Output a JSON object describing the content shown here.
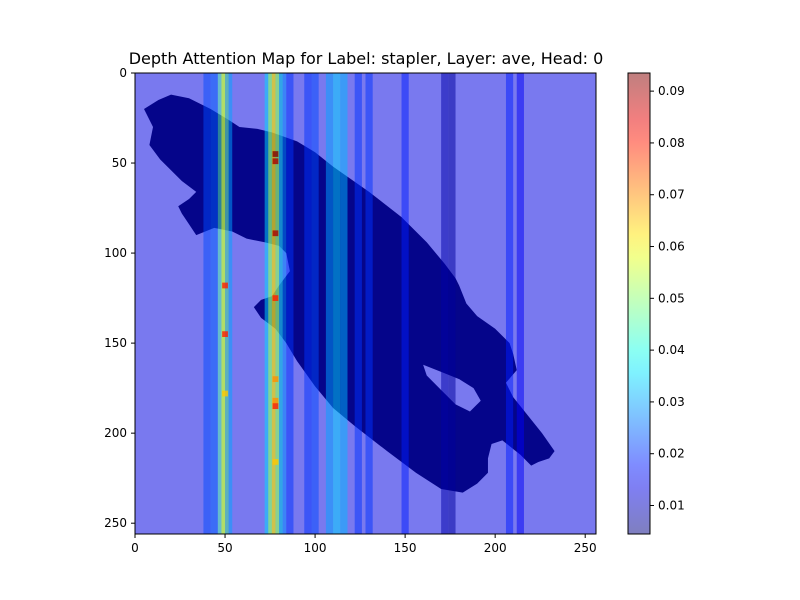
{
  "chart_data": [
    {
      "type": "heatmap",
      "title": "Depth Attention Map for Label: stapler, Layer: ave, Head: 0",
      "xlabel": "",
      "ylabel": "",
      "xlim": [
        0,
        256
      ],
      "ylim": [
        256,
        0
      ],
      "xticks": [
        "0",
        "50",
        "100",
        "150",
        "200",
        "250"
      ],
      "yticks": [
        "0",
        "50",
        "100",
        "150",
        "200",
        "250"
      ],
      "grid": false,
      "colormap": "jet",
      "overlay_alpha": 0.5,
      "base_image": "dark navy stapler silhouette on light background",
      "colorbar": {
        "min": 0.0045,
        "max": 0.0935,
        "ticks": [
          "0.01",
          "0.02",
          "0.03",
          "0.04",
          "0.05",
          "0.06",
          "0.07",
          "0.08",
          "0.09"
        ]
      },
      "attention_columns": [
        {
          "x": 40,
          "value": 0.022
        },
        {
          "x": 44,
          "value": 0.024
        },
        {
          "x": 48,
          "value": 0.045
        },
        {
          "x": 50,
          "value": 0.06
        },
        {
          "x": 52,
          "value": 0.03
        },
        {
          "x": 74,
          "value": 0.035
        },
        {
          "x": 76,
          "value": 0.055
        },
        {
          "x": 78,
          "value": 0.065
        },
        {
          "x": 80,
          "value": 0.045
        },
        {
          "x": 82,
          "value": 0.028
        },
        {
          "x": 86,
          "value": 0.02
        },
        {
          "x": 96,
          "value": 0.02
        },
        {
          "x": 100,
          "value": 0.022
        },
        {
          "x": 108,
          "value": 0.03
        },
        {
          "x": 112,
          "value": 0.035
        },
        {
          "x": 116,
          "value": 0.032
        },
        {
          "x": 124,
          "value": 0.02
        },
        {
          "x": 130,
          "value": 0.02
        },
        {
          "x": 150,
          "value": 0.018
        },
        {
          "x": 172,
          "value": 0.008
        },
        {
          "x": 176,
          "value": 0.007
        },
        {
          "x": 208,
          "value": 0.018
        },
        {
          "x": 214,
          "value": 0.015
        }
      ],
      "hotspots": [
        {
          "x": 78,
          "y": 45,
          "value": 0.093
        },
        {
          "x": 78,
          "y": 49,
          "value": 0.09
        },
        {
          "x": 78,
          "y": 89,
          "value": 0.09
        },
        {
          "x": 50,
          "y": 118,
          "value": 0.08
        },
        {
          "x": 78,
          "y": 125,
          "value": 0.08
        },
        {
          "x": 50,
          "y": 145,
          "value": 0.08
        },
        {
          "x": 78,
          "y": 170,
          "value": 0.07
        },
        {
          "x": 78,
          "y": 182,
          "value": 0.07
        },
        {
          "x": 78,
          "y": 185,
          "value": 0.08
        },
        {
          "x": 50,
          "y": 178,
          "value": 0.065
        },
        {
          "x": 78,
          "y": 216,
          "value": 0.065
        }
      ],
      "object_outline": [
        [
          5,
          20
        ],
        [
          13,
          15
        ],
        [
          20,
          12
        ],
        [
          30,
          14
        ],
        [
          42,
          20
        ],
        [
          52,
          26
        ],
        [
          58,
          30
        ],
        [
          68,
          31
        ],
        [
          76,
          33
        ],
        [
          90,
          38
        ],
        [
          100,
          44
        ],
        [
          110,
          52
        ],
        [
          130,
          66
        ],
        [
          148,
          80
        ],
        [
          162,
          94
        ],
        [
          172,
          106
        ],
        [
          178,
          114
        ],
        [
          180,
          118
        ],
        [
          184,
          128
        ],
        [
          190,
          135
        ],
        [
          200,
          142
        ],
        [
          208,
          150
        ],
        [
          210,
          156
        ],
        [
          212,
          165
        ],
        [
          206,
          172
        ],
        [
          210,
          180
        ],
        [
          218,
          190
        ],
        [
          226,
          200
        ],
        [
          233,
          210
        ],
        [
          230,
          214
        ],
        [
          224,
          216
        ],
        [
          220,
          218
        ],
        [
          214,
          212
        ],
        [
          204,
          204
        ],
        [
          198,
          206
        ],
        [
          196,
          214
        ],
        [
          196,
          222
        ],
        [
          190,
          228
        ],
        [
          182,
          233
        ],
        [
          170,
          231
        ],
        [
          156,
          222
        ],
        [
          140,
          210
        ],
        [
          122,
          196
        ],
        [
          110,
          186
        ],
        [
          100,
          174
        ],
        [
          90,
          160
        ],
        [
          84,
          150
        ],
        [
          78,
          142
        ],
        [
          70,
          136
        ],
        [
          66,
          130
        ],
        [
          70,
          126
        ],
        [
          76,
          124
        ],
        [
          80,
          118
        ],
        [
          86,
          110
        ],
        [
          84,
          100
        ],
        [
          80,
          96
        ],
        [
          72,
          94
        ],
        [
          62,
          92
        ],
        [
          54,
          88
        ],
        [
          44,
          86
        ],
        [
          34,
          90
        ],
        [
          30,
          84
        ],
        [
          26,
          78
        ],
        [
          24,
          74
        ],
        [
          30,
          70
        ],
        [
          34,
          66
        ],
        [
          26,
          60
        ],
        [
          20,
          54
        ],
        [
          14,
          48
        ],
        [
          8,
          40
        ],
        [
          10,
          30
        ],
        [
          5,
          20
        ]
      ],
      "object_hole": [
        [
          160,
          162
        ],
        [
          170,
          166
        ],
        [
          180,
          170
        ],
        [
          188,
          175
        ],
        [
          192,
          182
        ],
        [
          186,
          188
        ],
        [
          178,
          184
        ],
        [
          170,
          176
        ],
        [
          162,
          168
        ],
        [
          160,
          162
        ]
      ]
    }
  ]
}
